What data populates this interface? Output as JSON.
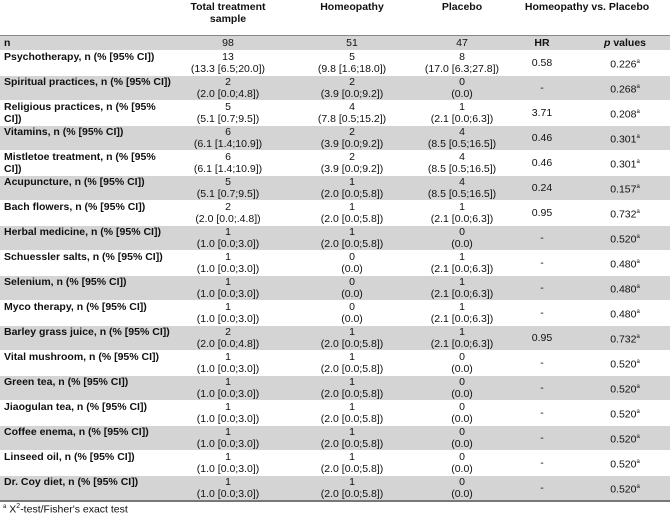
{
  "header": {
    "col_total": "Total treatment sample",
    "col_homeopathy": "Homeopathy",
    "col_placebo": "Placebo",
    "col_comparison": "Homeopathy vs. Placebo"
  },
  "n_row": {
    "label": "n",
    "total": "98",
    "homeopathy": "51",
    "placebo": "47",
    "hr": "HR",
    "p_prefix": "p",
    "p_suffix": " values"
  },
  "rows": [
    {
      "label": "Psychotherapy, n (% [95% CI])",
      "total_n": "13",
      "total_ci": "(13.3 [6.5;20.0])",
      "homeo_n": "5",
      "homeo_ci": "(9.8 [1.6;18.0])",
      "placebo_n": "8",
      "placebo_ci": "(17.0 [6.3;27.8])",
      "hr": "0.58",
      "p": "0.226",
      "sup": "a"
    },
    {
      "label": "Spiritual practices, n (% [95% CI])",
      "total_n": "2",
      "total_ci": "(2.0 [0.0;4.8])",
      "homeo_n": "2",
      "homeo_ci": "(3.9 [0.0;9.2])",
      "placebo_n": "0",
      "placebo_ci": "(0.0)",
      "hr": "-",
      "p": "0.268",
      "sup": "a"
    },
    {
      "label": "Religious practices, n (% [95% CI])",
      "total_n": "5",
      "total_ci": "(5.1 [0.7;9.5])",
      "homeo_n": "4",
      "homeo_ci": "(7.8 [0.5;15.2])",
      "placebo_n": "1",
      "placebo_ci": "(2.1 [0.0;6.3])",
      "hr": "3.71",
      "p": "0.208",
      "sup": "a"
    },
    {
      "label": "Vitamins, n (% [95% CI])",
      "total_n": "6",
      "total_ci": "(6.1 [1.4;10.9])",
      "homeo_n": "2",
      "homeo_ci": "(3.9 [0.0;9.2])",
      "placebo_n": "4",
      "placebo_ci": "(8.5 [0.5;16.5])",
      "hr": "0.46",
      "p": "0.301",
      "sup": "a"
    },
    {
      "label": "Mistletoe treatment, n (% [95% CI])",
      "total_n": "6",
      "total_ci": "(6.1 [1.4;10.9])",
      "homeo_n": "2",
      "homeo_ci": "(3.9 [0.0;9.2])",
      "placebo_n": "4",
      "placebo_ci": "(8.5 [0.5;16.5])",
      "hr": "0.46",
      "p": "0.301",
      "sup": "a"
    },
    {
      "label": "Acupuncture, n (% [95% CI])",
      "total_n": "5",
      "total_ci": "(5.1 [0.7;9.5])",
      "homeo_n": "1",
      "homeo_ci": "(2.0 [0.0;5.8])",
      "placebo_n": "4",
      "placebo_ci": "(8.5 [0.5;16.5])",
      "hr": "0.24",
      "p": "0.157",
      "sup": "a"
    },
    {
      "label": "Bach flowers, n (% [95% CI])",
      "total_n": "2",
      "total_ci": "(2.0 [0.0;.4.8])",
      "homeo_n": "1",
      "homeo_ci": "(2.0 [0.0;5.8])",
      "placebo_n": "1",
      "placebo_ci": "(2.1 [0.0;6.3])",
      "hr": "0.95",
      "p": "0.732",
      "sup": "a"
    },
    {
      "label": "Herbal medicine, n (% [95% CI])",
      "total_n": "1",
      "total_ci": "(1.0 [0.0;3.0])",
      "homeo_n": "1",
      "homeo_ci": "(2.0 [0.0;5.8])",
      "placebo_n": "0",
      "placebo_ci": "(0.0)",
      "hr": "-",
      "p": "0.520",
      "sup": "a"
    },
    {
      "label": "Schuessler salts, n (% [95% CI])",
      "total_n": "1",
      "total_ci": "(1.0 [0.0;3.0])",
      "homeo_n": "0",
      "homeo_ci": "(0.0)",
      "placebo_n": "1",
      "placebo_ci": "(2.1 [0.0;6.3])",
      "hr": "-",
      "p": "0.480",
      "sup": "a"
    },
    {
      "label": "Selenium, n (% [95% CI])",
      "total_n": "1",
      "total_ci": "(1.0 [0.0;3.0])",
      "homeo_n": "0",
      "homeo_ci": "(0.0)",
      "placebo_n": "1",
      "placebo_ci": "(2.1 [0.0;6.3])",
      "hr": "-",
      "p": "0.480",
      "sup": "a"
    },
    {
      "label": "Myco therapy, n (% [95% CI])",
      "total_n": "1",
      "total_ci": "(1.0 [0.0;3.0])",
      "homeo_n": "0",
      "homeo_ci": "(0.0)",
      "placebo_n": "1",
      "placebo_ci": "(2.1 [0.0;6.3])",
      "hr": "-",
      "p": "0.480",
      "sup": "a"
    },
    {
      "label": "Barley grass juice, n (% [95% CI])",
      "total_n": "2",
      "total_ci": "(2.0 [0.0;4.8])",
      "homeo_n": "1",
      "homeo_ci": "(2.0 [0.0;5.8])",
      "placebo_n": "1",
      "placebo_ci": "(2.1 [0.0;6.3])",
      "hr": "0.95",
      "p": "0.732",
      "sup": "a"
    },
    {
      "label": "Vital mushroom, n (% [95% CI])",
      "total_n": "1",
      "total_ci": "(1.0 [0.0;3.0])",
      "homeo_n": "1",
      "homeo_ci": "(2.0 [0.0;5.8])",
      "placebo_n": "0",
      "placebo_ci": "(0.0)",
      "hr": "-",
      "p": "0.520",
      "sup": "a"
    },
    {
      "label": "Green tea, n (% [95% CI])",
      "total_n": "1",
      "total_ci": "(1.0 [0.0;3.0])",
      "homeo_n": "1",
      "homeo_ci": "(2.0 [0.0;5.8])",
      "placebo_n": "0",
      "placebo_ci": "(0.0)",
      "hr": "-",
      "p": "0.520",
      "sup": "a"
    },
    {
      "label": "Jiaogulan tea, n (% [95% CI])",
      "total_n": "1",
      "total_ci": "(1.0 [0.0;3.0])",
      "homeo_n": "1",
      "homeo_ci": "(2.0 [0.0;5.8])",
      "placebo_n": "0",
      "placebo_ci": "(0.0)",
      "hr": "-",
      "p": "0.520",
      "sup": "a"
    },
    {
      "label": "Coffee enema, n (% [95% CI])",
      "total_n": "1",
      "total_ci": "(1.0 [0.0;3.0])",
      "homeo_n": "1",
      "homeo_ci": "(2.0 [0.0;5.8])",
      "placebo_n": "0",
      "placebo_ci": "(0.0)",
      "hr": "-",
      "p": "0.520",
      "sup": "a"
    },
    {
      "label": "Linseed oil, n (% [95% CI])",
      "total_n": "1",
      "total_ci": "(1.0 [0.0;3.0])",
      "homeo_n": "1",
      "homeo_ci": "(2.0 [0.0;5.8])",
      "placebo_n": "0",
      "placebo_ci": "(0.0)",
      "hr": "-",
      "p": "0.520",
      "sup": "a"
    },
    {
      "label": "Dr. Coy diet, n (% [95% CI])",
      "total_n": "1",
      "total_ci": "(1.0 [0.0;3.0])",
      "homeo_n": "1",
      "homeo_ci": "(2.0 [0.0;5.8])",
      "placebo_n": "0",
      "placebo_ci": "(0.0)",
      "hr": "-",
      "p": "0.520",
      "sup": "a"
    }
  ],
  "footnote": {
    "marker": "a",
    "x": "X",
    "power": "2",
    "text": "-test/Fisher's exact test"
  }
}
